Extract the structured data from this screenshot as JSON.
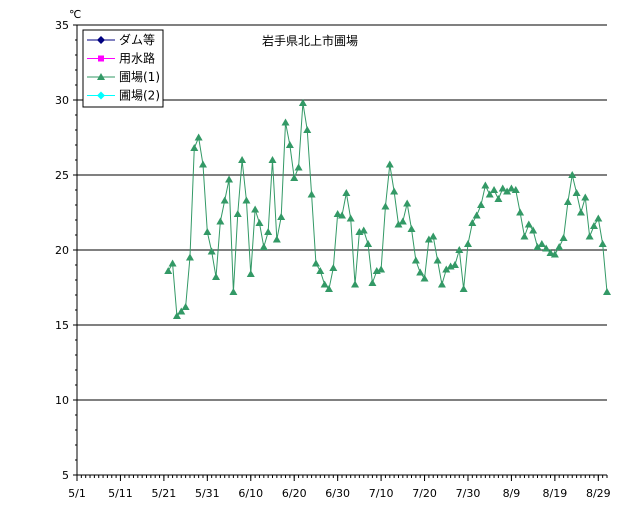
{
  "chart_data": {
    "type": "line",
    "title": "岩手県北上市圃場",
    "ylabel": "℃",
    "xlabel": "",
    "ylim": [
      5,
      35
    ],
    "yticks": [
      5,
      10,
      15,
      20,
      25,
      30,
      35
    ],
    "xlim": [
      0,
      122
    ],
    "xticks": [
      {
        "day": 0,
        "label": "5/1"
      },
      {
        "day": 10,
        "label": "5/11"
      },
      {
        "day": 20,
        "label": "5/21"
      },
      {
        "day": 30,
        "label": "5/31"
      },
      {
        "day": 40,
        "label": "6/10"
      },
      {
        "day": 50,
        "label": "6/20"
      },
      {
        "day": 60,
        "label": "6/30"
      },
      {
        "day": 70,
        "label": "7/10"
      },
      {
        "day": 80,
        "label": "7/20"
      },
      {
        "day": 90,
        "label": "7/30"
      },
      {
        "day": 100,
        "label": "8/9"
      },
      {
        "day": 110,
        "label": "8/19"
      },
      {
        "day": 120,
        "label": "8/29"
      }
    ],
    "grid": "horizontal",
    "legend_position": "top-left",
    "series": [
      {
        "name": "ダム等",
        "color": "#000080",
        "marker": "diamond",
        "values": []
      },
      {
        "name": "用水路",
        "color": "#ff00ff",
        "marker": "square",
        "values": []
      },
      {
        "name": "圃場(1)",
        "color": "#339966",
        "marker": "triangle",
        "x": [
          21,
          22,
          23,
          24,
          25,
          26,
          27,
          28,
          29,
          30,
          31,
          32,
          33,
          34,
          35,
          36,
          37,
          38,
          39,
          40,
          41,
          42,
          43,
          44,
          45,
          46,
          47,
          48,
          49,
          50,
          51,
          52,
          53,
          54,
          55,
          56,
          57,
          58,
          59,
          60,
          61,
          62,
          63,
          64,
          65,
          66,
          67,
          68,
          69,
          70,
          71,
          72,
          73,
          74,
          75,
          76,
          77,
          78,
          79,
          80,
          81,
          82,
          83,
          84,
          85,
          86,
          87,
          88,
          89,
          90,
          91,
          92,
          93,
          94,
          95,
          96,
          97,
          98,
          99,
          100,
          101,
          102,
          103,
          104,
          105,
          106,
          107,
          108,
          109,
          110,
          111,
          112,
          113,
          114,
          115,
          116,
          117,
          118,
          119,
          120,
          121,
          122
        ],
        "values": [
          18.6,
          19.1,
          15.6,
          15.9,
          16.2,
          19.5,
          26.8,
          27.5,
          25.7,
          21.2,
          19.9,
          18.2,
          21.9,
          23.3,
          24.7,
          17.2,
          22.4,
          26.0,
          23.3,
          18.4,
          22.7,
          21.8,
          20.2,
          21.2,
          26.0,
          20.7,
          22.2,
          28.5,
          27.0,
          24.8,
          25.5,
          29.8,
          28.0,
          23.7,
          19.1,
          18.6,
          17.7,
          17.4,
          18.8,
          22.4,
          22.3,
          23.8,
          22.1,
          17.7,
          21.2,
          21.3,
          20.4,
          17.8,
          18.6,
          18.7,
          22.9,
          25.7,
          23.9,
          21.7,
          21.9,
          23.1,
          21.4,
          19.3,
          18.5,
          18.1,
          20.7,
          20.9,
          19.3,
          17.7,
          18.7,
          18.9,
          19.0,
          20.0,
          17.4,
          20.4,
          21.8,
          22.3,
          23.0,
          24.3,
          23.7,
          24.0,
          23.4,
          24.1,
          23.9,
          24.1,
          24.0,
          22.5,
          20.9,
          21.7,
          21.3,
          20.2,
          20.4,
          20.1,
          19.8,
          19.7,
          20.2,
          20.8,
          23.2,
          25.0,
          23.8,
          22.5,
          23.5,
          20.9,
          21.6,
          22.1,
          20.4,
          17.2
        ]
      },
      {
        "name": "圃場(2)",
        "color": "#00ffff",
        "marker": "diamond",
        "values": []
      }
    ]
  }
}
